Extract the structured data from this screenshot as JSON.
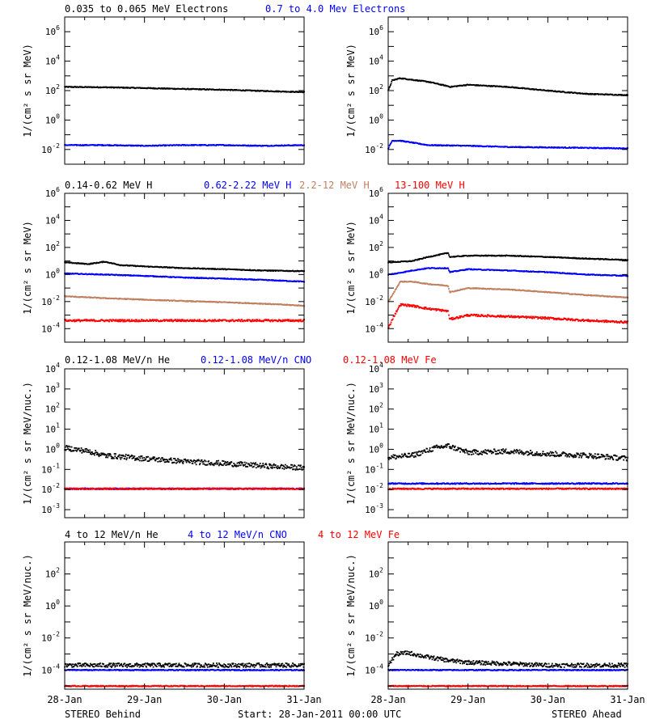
{
  "footer": {
    "left": "STEREO Behind",
    "center": "Start: 28-Jan-2011 00:00 UTC",
    "right": "STEREO Ahead"
  },
  "x_ticks": [
    "28-Jan",
    "29-Jan",
    "30-Jan",
    "31-Jan"
  ],
  "colors": {
    "black": "#000000",
    "blue": "#0000ff",
    "tan": "#c08060",
    "red": "#ff0000"
  },
  "chart_data": [
    {
      "type": "scatter",
      "row": 0,
      "spacecraft": "Behind",
      "ylabel": "1/(cm² s sr MeV)",
      "yscale": "log",
      "ylim_exp": [
        -3,
        7
      ],
      "yticks_exp": [
        -2,
        0,
        2,
        4,
        6
      ],
      "xlim_days": [
        0,
        3
      ],
      "series": [
        {
          "name": "0.035 to 0.065 MeV Electrons",
          "color": "#000000",
          "x": [
            0,
            0.5,
            1,
            1.5,
            2,
            2.5,
            3
          ],
          "y": [
            180,
            170,
            150,
            130,
            115,
            95,
            80
          ]
        },
        {
          "name": "0.7 to 4.0 Mev Electrons",
          "color": "#0000ff",
          "x": [
            0,
            0.5,
            1,
            1.5,
            2,
            2.5,
            3
          ],
          "y": [
            0.02,
            0.02,
            0.018,
            0.02,
            0.02,
            0.018,
            0.02
          ]
        }
      ]
    },
    {
      "type": "scatter",
      "row": 0,
      "spacecraft": "Ahead",
      "ylabel": "1/(cm² s sr MeV)",
      "yscale": "log",
      "ylim_exp": [
        -3,
        7
      ],
      "yticks_exp": [
        -2,
        0,
        2,
        4,
        6
      ],
      "xlim_days": [
        0,
        3
      ],
      "series": [
        {
          "name": "",
          "color": "#000000",
          "x": [
            0,
            0.05,
            0.15,
            0.5,
            0.75,
            0.77,
            1,
            1.5,
            2,
            2.5,
            3
          ],
          "y": [
            100,
            500,
            700,
            400,
            200,
            180,
            250,
            180,
            100,
            60,
            50
          ]
        },
        {
          "name": "",
          "color": "#0000ff",
          "x": [
            0,
            0.05,
            0.15,
            0.5,
            1,
            1.5,
            2,
            2.5,
            3
          ],
          "y": [
            0.012,
            0.04,
            0.04,
            0.02,
            0.018,
            0.015,
            0.014,
            0.013,
            0.012
          ]
        }
      ]
    },
    {
      "type": "scatter",
      "row": 1,
      "spacecraft": "Behind",
      "ylabel": "1/(cm² s sr MeV)",
      "yscale": "log",
      "ylim_exp": [
        -5,
        6
      ],
      "yticks_exp": [
        -4,
        -2,
        0,
        2,
        4,
        6
      ],
      "xlim_days": [
        0,
        3
      ],
      "series": [
        {
          "name": "0.14-0.62 MeV H",
          "color": "#000000",
          "x": [
            0,
            0.3,
            0.5,
            0.7,
            1,
            1.5,
            2,
            2.5,
            3
          ],
          "y": [
            8,
            6,
            9,
            5,
            4,
            3,
            2.5,
            2,
            1.8
          ]
        },
        {
          "name": "0.62-2.22 MeV H",
          "color": "#0000ff",
          "x": [
            0,
            0.5,
            1,
            1.5,
            2,
            2.5,
            3
          ],
          "y": [
            1.2,
            1.0,
            0.8,
            0.6,
            0.5,
            0.4,
            0.3
          ]
        },
        {
          "name": "2.2-12 MeV H",
          "color": "#c08060",
          "x": [
            0,
            0.5,
            1,
            1.5,
            2,
            2.5,
            3
          ],
          "y": [
            0.025,
            0.018,
            0.014,
            0.011,
            0.009,
            0.007,
            0.005
          ]
        },
        {
          "name": "13-100 MeV H",
          "color": "#ff0000",
          "x": [
            0,
            0.5,
            1,
            1.5,
            2,
            2.5,
            3
          ],
          "y": [
            0.0004,
            0.0004,
            0.0004,
            0.0004,
            0.0004,
            0.0004,
            0.0004
          ]
        }
      ]
    },
    {
      "type": "scatter",
      "row": 1,
      "spacecraft": "Ahead",
      "ylabel": "1/(cm² s sr MeV)",
      "yscale": "log",
      "ylim_exp": [
        -5,
        6
      ],
      "yticks_exp": [
        -4,
        -2,
        0,
        2,
        4,
        6
      ],
      "xlim_days": [
        0,
        3
      ],
      "series": [
        {
          "name": "",
          "color": "#000000",
          "x": [
            0,
            0.3,
            0.5,
            0.75,
            0.77,
            1,
            1.5,
            2,
            2.5,
            3
          ],
          "y": [
            8,
            10,
            20,
            40,
            20,
            25,
            25,
            20,
            15,
            12
          ]
        },
        {
          "name": "",
          "color": "#0000ff",
          "x": [
            0,
            0.1,
            0.3,
            0.5,
            0.75,
            0.77,
            1,
            1.5,
            2,
            2.5,
            3
          ],
          "y": [
            1,
            1.2,
            2,
            3,
            3,
            1.5,
            2.5,
            2,
            1.5,
            1,
            0.8
          ]
        },
        {
          "name": "",
          "color": "#c08060",
          "x": [
            0,
            0.05,
            0.15,
            0.3,
            0.5,
            0.75,
            0.77,
            1,
            1.5,
            2,
            2.5,
            3
          ],
          "y": [
            0.01,
            0.03,
            0.3,
            0.3,
            0.2,
            0.15,
            0.05,
            0.1,
            0.08,
            0.05,
            0.03,
            0.02
          ]
        },
        {
          "name": "",
          "color": "#ff0000",
          "x": [
            0,
            0.05,
            0.15,
            0.3,
            0.5,
            0.75,
            0.77,
            1,
            1.5,
            2,
            2.5,
            3
          ],
          "y": [
            0.0001,
            0.0005,
            0.006,
            0.005,
            0.003,
            0.002,
            0.0005,
            0.001,
            0.0008,
            0.0006,
            0.0004,
            0.0003
          ]
        }
      ]
    },
    {
      "type": "scatter",
      "row": 2,
      "spacecraft": "Behind",
      "ylabel": "1/(cm² s sr MeV/nuc.)",
      "yscale": "log",
      "ylim_exp": [
        -3.4,
        4
      ],
      "yticks_exp": [
        -3,
        -2,
        -1,
        0,
        1,
        2,
        3,
        4
      ],
      "xlim_days": [
        0,
        3
      ],
      "series": [
        {
          "name": "0.12-1.08 MeV/n He",
          "color": "#000000",
          "x": [
            0,
            0.3,
            0.5,
            1,
            1.5,
            2,
            2.5,
            3
          ],
          "y": [
            1.2,
            0.8,
            0.5,
            0.35,
            0.25,
            0.2,
            0.15,
            0.12
          ]
        },
        {
          "name": "0.12-1.08 MeV/n CNO",
          "color": "#0000ff",
          "x": [
            0,
            1,
            2,
            3
          ],
          "y": [
            0.011,
            0.011,
            0.011,
            0.011
          ]
        },
        {
          "name": "0.12-1.08 MeV Fe",
          "color": "#ff0000",
          "x": [
            0,
            1,
            2,
            3
          ],
          "y": [
            0.011,
            0.011,
            0.011,
            0.011
          ]
        }
      ]
    },
    {
      "type": "scatter",
      "row": 2,
      "spacecraft": "Ahead",
      "ylabel": "1/(cm² s sr MeV/nuc.)",
      "yscale": "log",
      "ylim_exp": [
        -3.4,
        4
      ],
      "yticks_exp": [
        -3,
        -2,
        -1,
        0,
        1,
        2,
        3,
        4
      ],
      "xlim_days": [
        0,
        3
      ],
      "series": [
        {
          "name": "",
          "color": "#000000",
          "x": [
            0,
            0.3,
            0.6,
            0.75,
            1,
            1.5,
            2,
            2.5,
            3
          ],
          "y": [
            0.4,
            0.5,
            1.2,
            1.5,
            0.7,
            0.8,
            0.6,
            0.5,
            0.35
          ]
        },
        {
          "name": "",
          "color": "#0000ff",
          "x": [
            0,
            1,
            2,
            3
          ],
          "y": [
            0.02,
            0.02,
            0.02,
            0.02
          ]
        },
        {
          "name": "",
          "color": "#ff0000",
          "x": [
            0,
            1,
            2,
            3
          ],
          "y": [
            0.011,
            0.011,
            0.011,
            0.011
          ]
        }
      ]
    },
    {
      "type": "scatter",
      "row": 3,
      "spacecraft": "Behind",
      "ylabel": "1/(cm² s sr MeV/nuc.)",
      "yscale": "log",
      "ylim_exp": [
        -5.2,
        4
      ],
      "yticks_exp": [
        -4,
        -2,
        0,
        2
      ],
      "xlim_days": [
        0,
        3
      ],
      "series": [
        {
          "name": "4 to 12 MeV/n He",
          "color": "#000000",
          "x": [
            0,
            0.5,
            1,
            1.5,
            2,
            2.5,
            3
          ],
          "y": [
            0.0002,
            0.0002,
            0.0002,
            0.0002,
            0.0002,
            0.0002,
            0.0002
          ]
        },
        {
          "name": "4 to 12 MeV/n CNO",
          "color": "#0000ff",
          "x": [
            0,
            1,
            2,
            3
          ],
          "y": [
            0.0001,
            0.0001,
            0.0001,
            0.0001
          ]
        },
        {
          "name": "4 to 12 MeV Fe",
          "color": "#ff0000",
          "x": [
            0,
            1,
            2,
            3
          ],
          "y": [
            1e-05,
            1e-05,
            1e-05,
            1e-05
          ]
        }
      ]
    },
    {
      "type": "scatter",
      "row": 3,
      "spacecraft": "Ahead",
      "ylabel": "1/(cm² s sr MeV/nuc.)",
      "yscale": "log",
      "ylim_exp": [
        -5.2,
        4
      ],
      "yticks_exp": [
        -4,
        -2,
        0,
        2
      ],
      "xlim_days": [
        0,
        3
      ],
      "series": [
        {
          "name": "",
          "color": "#000000",
          "x": [
            0,
            0.1,
            0.25,
            0.45,
            0.75,
            1,
            1.5,
            2,
            2.5,
            3
          ],
          "y": [
            0.0002,
            0.001,
            0.0012,
            0.0007,
            0.0004,
            0.0003,
            0.00025,
            0.0002,
            0.0002,
            0.0002
          ]
        },
        {
          "name": "",
          "color": "#0000ff",
          "x": [
            0,
            1,
            2,
            3
          ],
          "y": [
            0.0001,
            0.0001,
            0.0001,
            0.0001
          ]
        },
        {
          "name": "",
          "color": "#ff0000",
          "x": [
            0,
            1,
            2,
            3
          ],
          "y": [
            1e-05,
            1e-05,
            1e-05,
            1e-05
          ]
        }
      ]
    }
  ]
}
